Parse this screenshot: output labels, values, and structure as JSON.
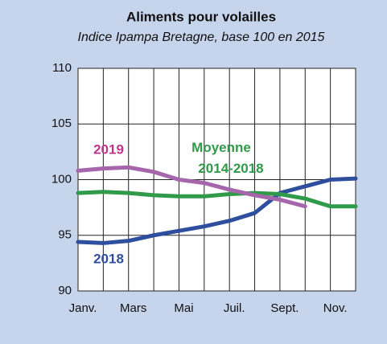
{
  "chart_data": {
    "type": "line",
    "title": "Aliments pour volailles",
    "subtitle": "Indice Ipampa Bretagne, base 100 en 2015",
    "categories": [
      "Janv.",
      null,
      "Mars",
      null,
      "Mai",
      null,
      "Juil.",
      null,
      "Sept.",
      null,
      "Nov.",
      null
    ],
    "series": [
      {
        "name": "2018",
        "color": "#2e4f9e",
        "values": [
          94.4,
          94.3,
          94.5,
          95.0,
          95.4,
          95.8,
          96.3,
          97.0,
          98.8,
          99.4,
          100.0,
          100.1
        ]
      },
      {
        "name": "Moyenne 2014-2018",
        "color": "#2f9a4a",
        "values": [
          98.8,
          98.9,
          98.8,
          98.6,
          98.5,
          98.5,
          98.7,
          98.8,
          98.7,
          98.3,
          97.6,
          97.6
        ]
      },
      {
        "name": "2019",
        "color": "#a566ac",
        "values": [
          100.8,
          101.0,
          101.1,
          100.7,
          100.0,
          99.7,
          99.1,
          98.6,
          98.2,
          97.6,
          null,
          null
        ]
      }
    ],
    "ylim": [
      90,
      110
    ],
    "yticks": [
      90,
      95,
      100,
      105,
      110
    ],
    "grid": true
  }
}
